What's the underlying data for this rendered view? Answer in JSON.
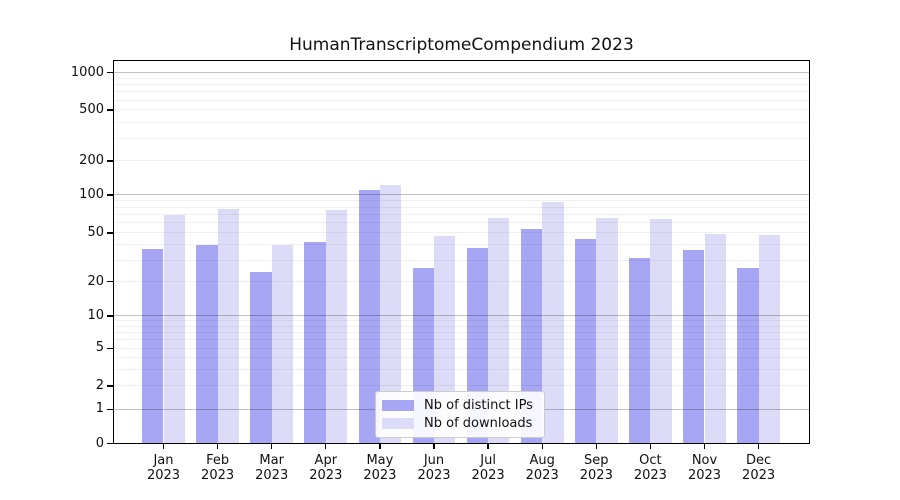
{
  "title": "HumanTranscriptomeCompendium 2023",
  "chart_data": {
    "type": "bar",
    "title": "HumanTranscriptomeCompendium 2023",
    "xlabel": "",
    "ylabel": "",
    "categories": [
      "Jan 2023",
      "Feb 2023",
      "Mar 2023",
      "Apr 2023",
      "May 2023",
      "Jun 2023",
      "Jul 2023",
      "Aug 2023",
      "Sep 2023",
      "Oct 2023",
      "Nov 2023",
      "Dec 2023"
    ],
    "series": [
      {
        "name": "Nb of distinct IPs",
        "color": "#a6a6f4",
        "values": [
          37,
          40,
          24,
          42,
          110,
          26,
          38,
          54,
          45,
          31,
          36,
          26
        ]
      },
      {
        "name": "Nb of downloads",
        "color": "#dcdcf8",
        "values": [
          69,
          78,
          40,
          76,
          122,
          47,
          66,
          88,
          66,
          65,
          49,
          48
        ]
      }
    ],
    "yticks": [
      0,
      1,
      2,
      5,
      10,
      20,
      50,
      100,
      200,
      500,
      1000
    ],
    "ylim": [
      0,
      1300
    ],
    "yscale": "symlog-like (log spacing above 1, compressed first decade, linear 0-1)",
    "grid": "horizontal, major at 1/10/100/1000, minor at 2-9 per decade",
    "legend_position": "lower center"
  }
}
